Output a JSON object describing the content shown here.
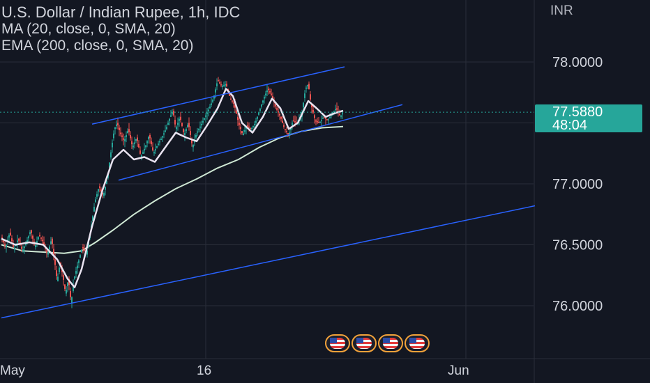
{
  "legend": {
    "symbol": "U.S. Dollar / Indian Rupee, 1h, IDC",
    "ma": "MA (20, close, 0, SMA, 20)",
    "ema": "EMA (200, close, 0, SMA, 20)"
  },
  "currency": "INR",
  "last_price": "77.5880",
  "countdown": "48:04",
  "events": {
    "icon": "us-flag-icon",
    "count": 4
  },
  "colors": {
    "background": "#131722",
    "grid": "#2a2e39",
    "up": "#26a69a",
    "down": "#ef5350",
    "ma": "#e9e3f0",
    "ema": "#cfe8d4",
    "trendline": "#2962ff",
    "price_line": "#26a69a",
    "axis_text": "#d1d4dc"
  },
  "chart_data": {
    "type": "candlestick",
    "y_axis": {
      "ylim": [
        75.8,
        78.2
      ],
      "ticks": [
        "76.0000",
        "76.5000",
        "77.0000",
        "77.5000",
        "78.0000"
      ]
    },
    "x_axis": {
      "ticks": [
        "May",
        "16",
        "Jun"
      ]
    },
    "grid": true,
    "price_line": 77.588,
    "close_path": [
      [
        0,
        76.56
      ],
      [
        6,
        76.48
      ],
      [
        12,
        76.6
      ],
      [
        18,
        76.46
      ],
      [
        24,
        76.55
      ],
      [
        30,
        76.45
      ],
      [
        36,
        76.52
      ],
      [
        42,
        76.62
      ],
      [
        48,
        76.48
      ],
      [
        54,
        76.58
      ],
      [
        60,
        76.52
      ],
      [
        66,
        76.42
      ],
      [
        72,
        76.55
      ],
      [
        76,
        76.38
      ],
      [
        80,
        76.2
      ],
      [
        84,
        76.35
      ],
      [
        88,
        76.25
      ],
      [
        92,
        76.1
      ],
      [
        96,
        76.22
      ],
      [
        100,
        76.02
      ],
      [
        104,
        76.22
      ],
      [
        110,
        76.35
      ],
      [
        116,
        76.48
      ],
      [
        122,
        76.42
      ],
      [
        128,
        76.62
      ],
      [
        134,
        76.85
      ],
      [
        140,
        76.98
      ],
      [
        146,
        76.9
      ],
      [
        152,
        77.05
      ],
      [
        158,
        77.3
      ],
      [
        162,
        77.45
      ],
      [
        166,
        77.5
      ],
      [
        170,
        77.42
      ],
      [
        176,
        77.35
      ],
      [
        182,
        77.45
      ],
      [
        188,
        77.3
      ],
      [
        194,
        77.38
      ],
      [
        200,
        77.22
      ],
      [
        206,
        77.3
      ],
      [
        212,
        77.4
      ],
      [
        218,
        77.25
      ],
      [
        224,
        77.32
      ],
      [
        230,
        77.38
      ],
      [
        236,
        77.45
      ],
      [
        242,
        77.55
      ],
      [
        246,
        77.6
      ],
      [
        250,
        77.45
      ],
      [
        256,
        77.55
      ],
      [
        262,
        77.4
      ],
      [
        268,
        77.5
      ],
      [
        274,
        77.3
      ],
      [
        280,
        77.42
      ],
      [
        286,
        77.48
      ],
      [
        292,
        77.55
      ],
      [
        298,
        77.62
      ],
      [
        304,
        77.7
      ],
      [
        310,
        77.85
      ],
      [
        316,
        77.8
      ],
      [
        322,
        77.82
      ],
      [
        328,
        77.7
      ],
      [
        334,
        77.65
      ],
      [
        340,
        77.5
      ],
      [
        346,
        77.4
      ],
      [
        352,
        77.48
      ],
      [
        358,
        77.45
      ],
      [
        364,
        77.5
      ],
      [
        370,
        77.6
      ],
      [
        376,
        77.7
      ],
      [
        382,
        77.78
      ],
      [
        388,
        77.72
      ],
      [
        394,
        77.62
      ],
      [
        400,
        77.55
      ],
      [
        406,
        77.45
      ],
      [
        412,
        77.4
      ],
      [
        418,
        77.52
      ],
      [
        424,
        77.5
      ],
      [
        430,
        77.55
      ],
      [
        436,
        77.78
      ],
      [
        440,
        77.82
      ],
      [
        444,
        77.65
      ],
      [
        450,
        77.52
      ],
      [
        456,
        77.5
      ],
      [
        462,
        77.55
      ],
      [
        468,
        77.52
      ],
      [
        474,
        77.58
      ],
      [
        480,
        77.62
      ],
      [
        486,
        77.55
      ],
      [
        490,
        77.59
      ]
    ],
    "ma20": [
      [
        0,
        76.55
      ],
      [
        20,
        76.5
      ],
      [
        40,
        76.52
      ],
      [
        60,
        76.5
      ],
      [
        80,
        76.38
      ],
      [
        95,
        76.22
      ],
      [
        105,
        76.15
      ],
      [
        115,
        76.3
      ],
      [
        130,
        76.65
      ],
      [
        145,
        76.95
      ],
      [
        160,
        77.2
      ],
      [
        175,
        77.28
      ],
      [
        190,
        77.2
      ],
      [
        205,
        77.22
      ],
      [
        220,
        77.18
      ],
      [
        235,
        77.3
      ],
      [
        250,
        77.42
      ],
      [
        265,
        77.38
      ],
      [
        280,
        77.35
      ],
      [
        295,
        77.48
      ],
      [
        310,
        77.62
      ],
      [
        322,
        77.78
      ],
      [
        332,
        77.72
      ],
      [
        345,
        77.5
      ],
      [
        360,
        77.42
      ],
      [
        375,
        77.55
      ],
      [
        388,
        77.7
      ],
      [
        400,
        77.62
      ],
      [
        412,
        77.45
      ],
      [
        425,
        77.5
      ],
      [
        440,
        77.68
      ],
      [
        452,
        77.62
      ],
      [
        465,
        77.55
      ],
      [
        478,
        77.58
      ],
      [
        490,
        77.6
      ]
    ],
    "ema200": [
      [
        0,
        76.5
      ],
      [
        30,
        76.45
      ],
      [
        60,
        76.44
      ],
      [
        90,
        76.43
      ],
      [
        115,
        76.45
      ],
      [
        135,
        76.52
      ],
      [
        160,
        76.62
      ],
      [
        190,
        76.75
      ],
      [
        220,
        76.86
      ],
      [
        250,
        76.96
      ],
      [
        280,
        77.04
      ],
      [
        310,
        77.13
      ],
      [
        340,
        77.2
      ],
      [
        370,
        77.3
      ],
      [
        400,
        77.38
      ],
      [
        430,
        77.43
      ],
      [
        460,
        77.46
      ],
      [
        490,
        77.47
      ]
    ],
    "trendlines": [
      {
        "from": [
          130,
          77.49
        ],
        "to": [
          492,
          77.96
        ]
      },
      {
        "from": [
          168,
          77.03
        ],
        "to": [
          575,
          77.65
        ]
      },
      {
        "from": [
          0,
          75.9
        ],
        "to": [
          765,
          76.82
        ]
      }
    ]
  }
}
